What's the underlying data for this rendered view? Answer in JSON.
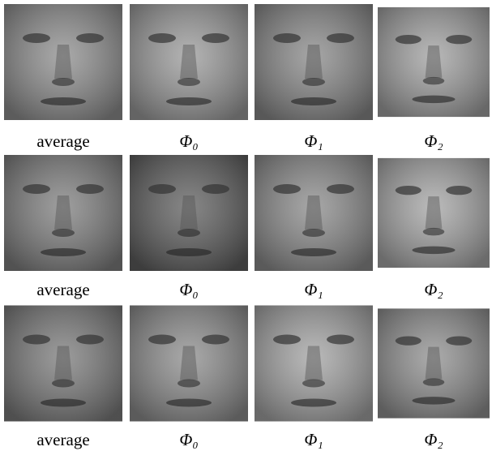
{
  "rows": [
    {
      "labels": [
        "average",
        "Φ₀",
        "Φ₁",
        "Φ₂"
      ]
    },
    {
      "labels": [
        "average",
        "Φ₀",
        "Φ₁",
        "Φ₂"
      ]
    },
    {
      "labels": [
        "average",
        "Φ₀",
        "Φ₁",
        "Φ₂"
      ]
    }
  ]
}
